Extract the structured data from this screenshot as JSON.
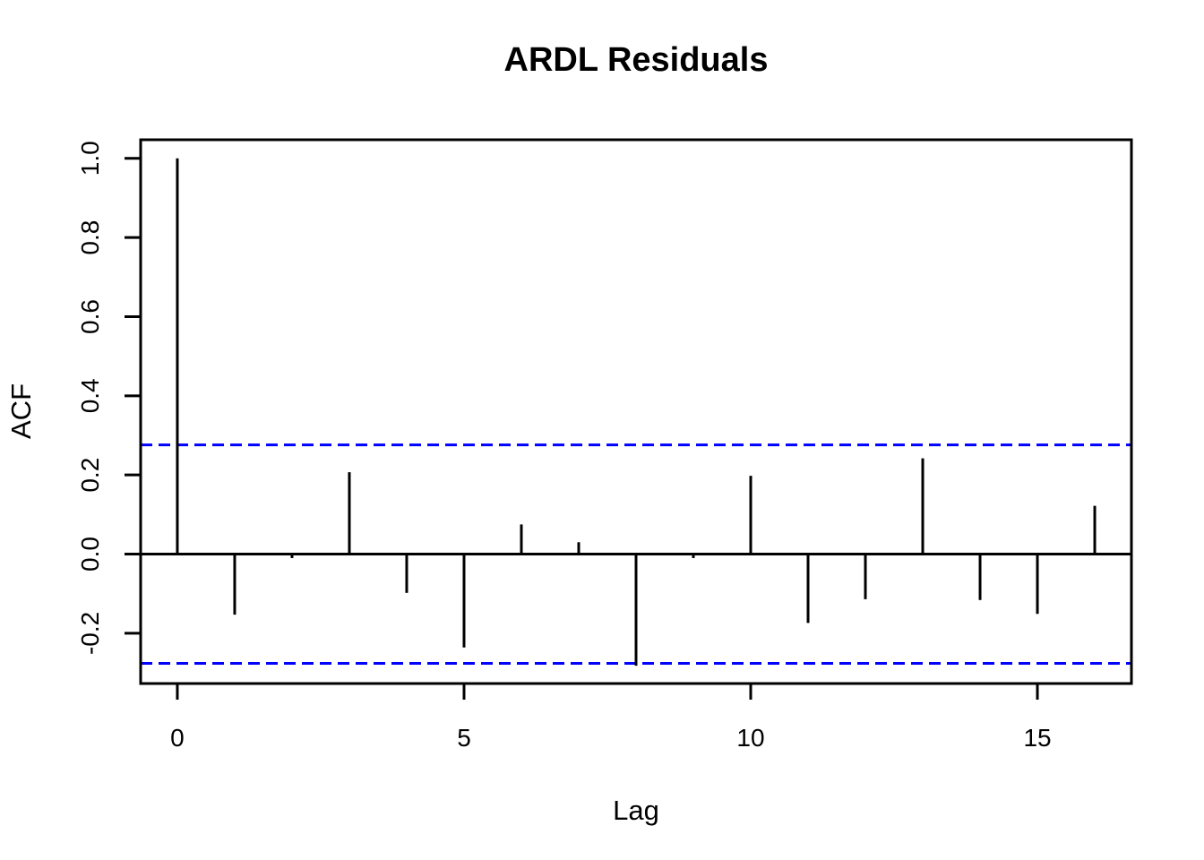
{
  "chart_data": {
    "type": "stem",
    "title": "ARDL Residuals",
    "xlabel": "Lag",
    "ylabel": "ACF",
    "x": [
      0,
      1,
      2,
      3,
      4,
      5,
      6,
      7,
      8,
      9,
      10,
      11,
      12,
      13,
      14,
      15,
      16
    ],
    "values": [
      1.0,
      -0.153,
      -0.01,
      0.207,
      -0.098,
      -0.236,
      0.075,
      0.03,
      -0.282,
      -0.01,
      0.198,
      -0.174,
      -0.114,
      0.242,
      -0.116,
      -0.151,
      0.122
    ],
    "confidence_bands": {
      "upper": 0.276,
      "lower": -0.276,
      "line_style": "dashed",
      "color": "#0000ff"
    },
    "xticks": [
      {
        "v": 0,
        "label": "0"
      },
      {
        "v": 5,
        "label": "5"
      },
      {
        "v": 10,
        "label": "10"
      },
      {
        "v": 15,
        "label": "15"
      }
    ],
    "yticks": [
      {
        "v": 1.0,
        "label": "1.0"
      },
      {
        "v": 0.8,
        "label": "0.8"
      },
      {
        "v": 0.6,
        "label": "0.6"
      },
      {
        "v": 0.4,
        "label": "0.4"
      },
      {
        "v": 0.2,
        "label": "0.2"
      },
      {
        "v": 0.0,
        "label": "0.0"
      },
      {
        "v": -0.2,
        "label": "-0.2"
      }
    ],
    "xlim": [
      -0.64,
      16.64
    ],
    "ylim": [
      -0.327,
      1.047
    ],
    "grid": false,
    "legend": null,
    "colors": {
      "stem": "#000000",
      "axis": "#000000",
      "confidence": "#0000ff",
      "background": "#ffffff",
      "text": "#000000"
    }
  }
}
